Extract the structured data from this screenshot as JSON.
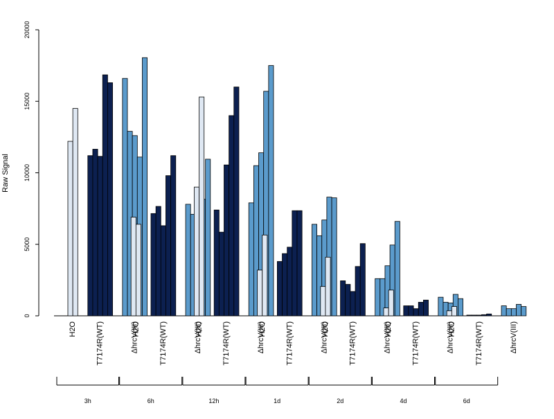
{
  "chart_data": {
    "type": "bar",
    "ylabel": "Raw Signal",
    "ylim": [
      0,
      20000
    ],
    "yticks": [
      "0",
      "5000",
      "10000",
      "15000",
      "20000"
    ],
    "grid": false,
    "treatment_labels": [
      "H2O",
      "T7174R(WT)",
      "ΔhrcV(III)"
    ],
    "colors": {
      "H2O": "#dfe8f3",
      "T7174R(WT)": "#0c2050",
      "ΔhrcV(III)": "#5b9bcc"
    },
    "timepoints": [
      {
        "label": "3h",
        "H2O": [
          12200,
          14500
        ],
        "T7174R(WT)": [
          11200,
          11650,
          11150,
          16850,
          16300
        ],
        "ΔhrcV(III)": [
          16600,
          12900,
          12600,
          11100,
          18050
        ]
      },
      {
        "label": "6h",
        "H2O": [
          6900,
          6400
        ],
        "T7174R(WT)": [
          7150,
          7650,
          6300,
          9800,
          11200
        ],
        "ΔhrcV(III)": [
          7800,
          7100,
          7300,
          8150,
          10950
        ]
      },
      {
        "label": "12h",
        "H2O": [
          9000,
          15300
        ],
        "T7174R(WT)": [
          7400,
          5850,
          10550,
          14000,
          16000
        ],
        "ΔhrcV(III)": [
          7900,
          10500,
          11400,
          15700,
          17500
        ]
      },
      {
        "label": "1d",
        "H2O": [
          3200,
          5650
        ],
        "T7174R(WT)": [
          3800,
          4350,
          4800,
          7350,
          7350
        ],
        "ΔhrcV(III)": [
          6400,
          5600,
          6700,
          8300,
          8250
        ]
      },
      {
        "label": "2d",
        "H2O": [
          2050,
          4100
        ],
        "T7174R(WT)": [
          2450,
          2200,
          1700,
          3450,
          5050
        ],
        "ΔhrcV(III)": [
          2600,
          2600,
          3500,
          4950,
          6600
        ]
      },
      {
        "label": "4d",
        "H2O": [
          550,
          1800
        ],
        "T7174R(WT)": [
          700,
          700,
          500,
          950,
          1100
        ],
        "ΔhrcV(III)": [
          1300,
          950,
          900,
          1500,
          1200
        ]
      },
      {
        "label": "6d",
        "H2O": [
          350,
          650
        ],
        "T7174R(WT)": [
          50,
          50,
          50,
          80,
          130
        ],
        "ΔhrcV(III)": [
          700,
          500,
          500,
          800,
          650
        ]
      }
    ]
  }
}
